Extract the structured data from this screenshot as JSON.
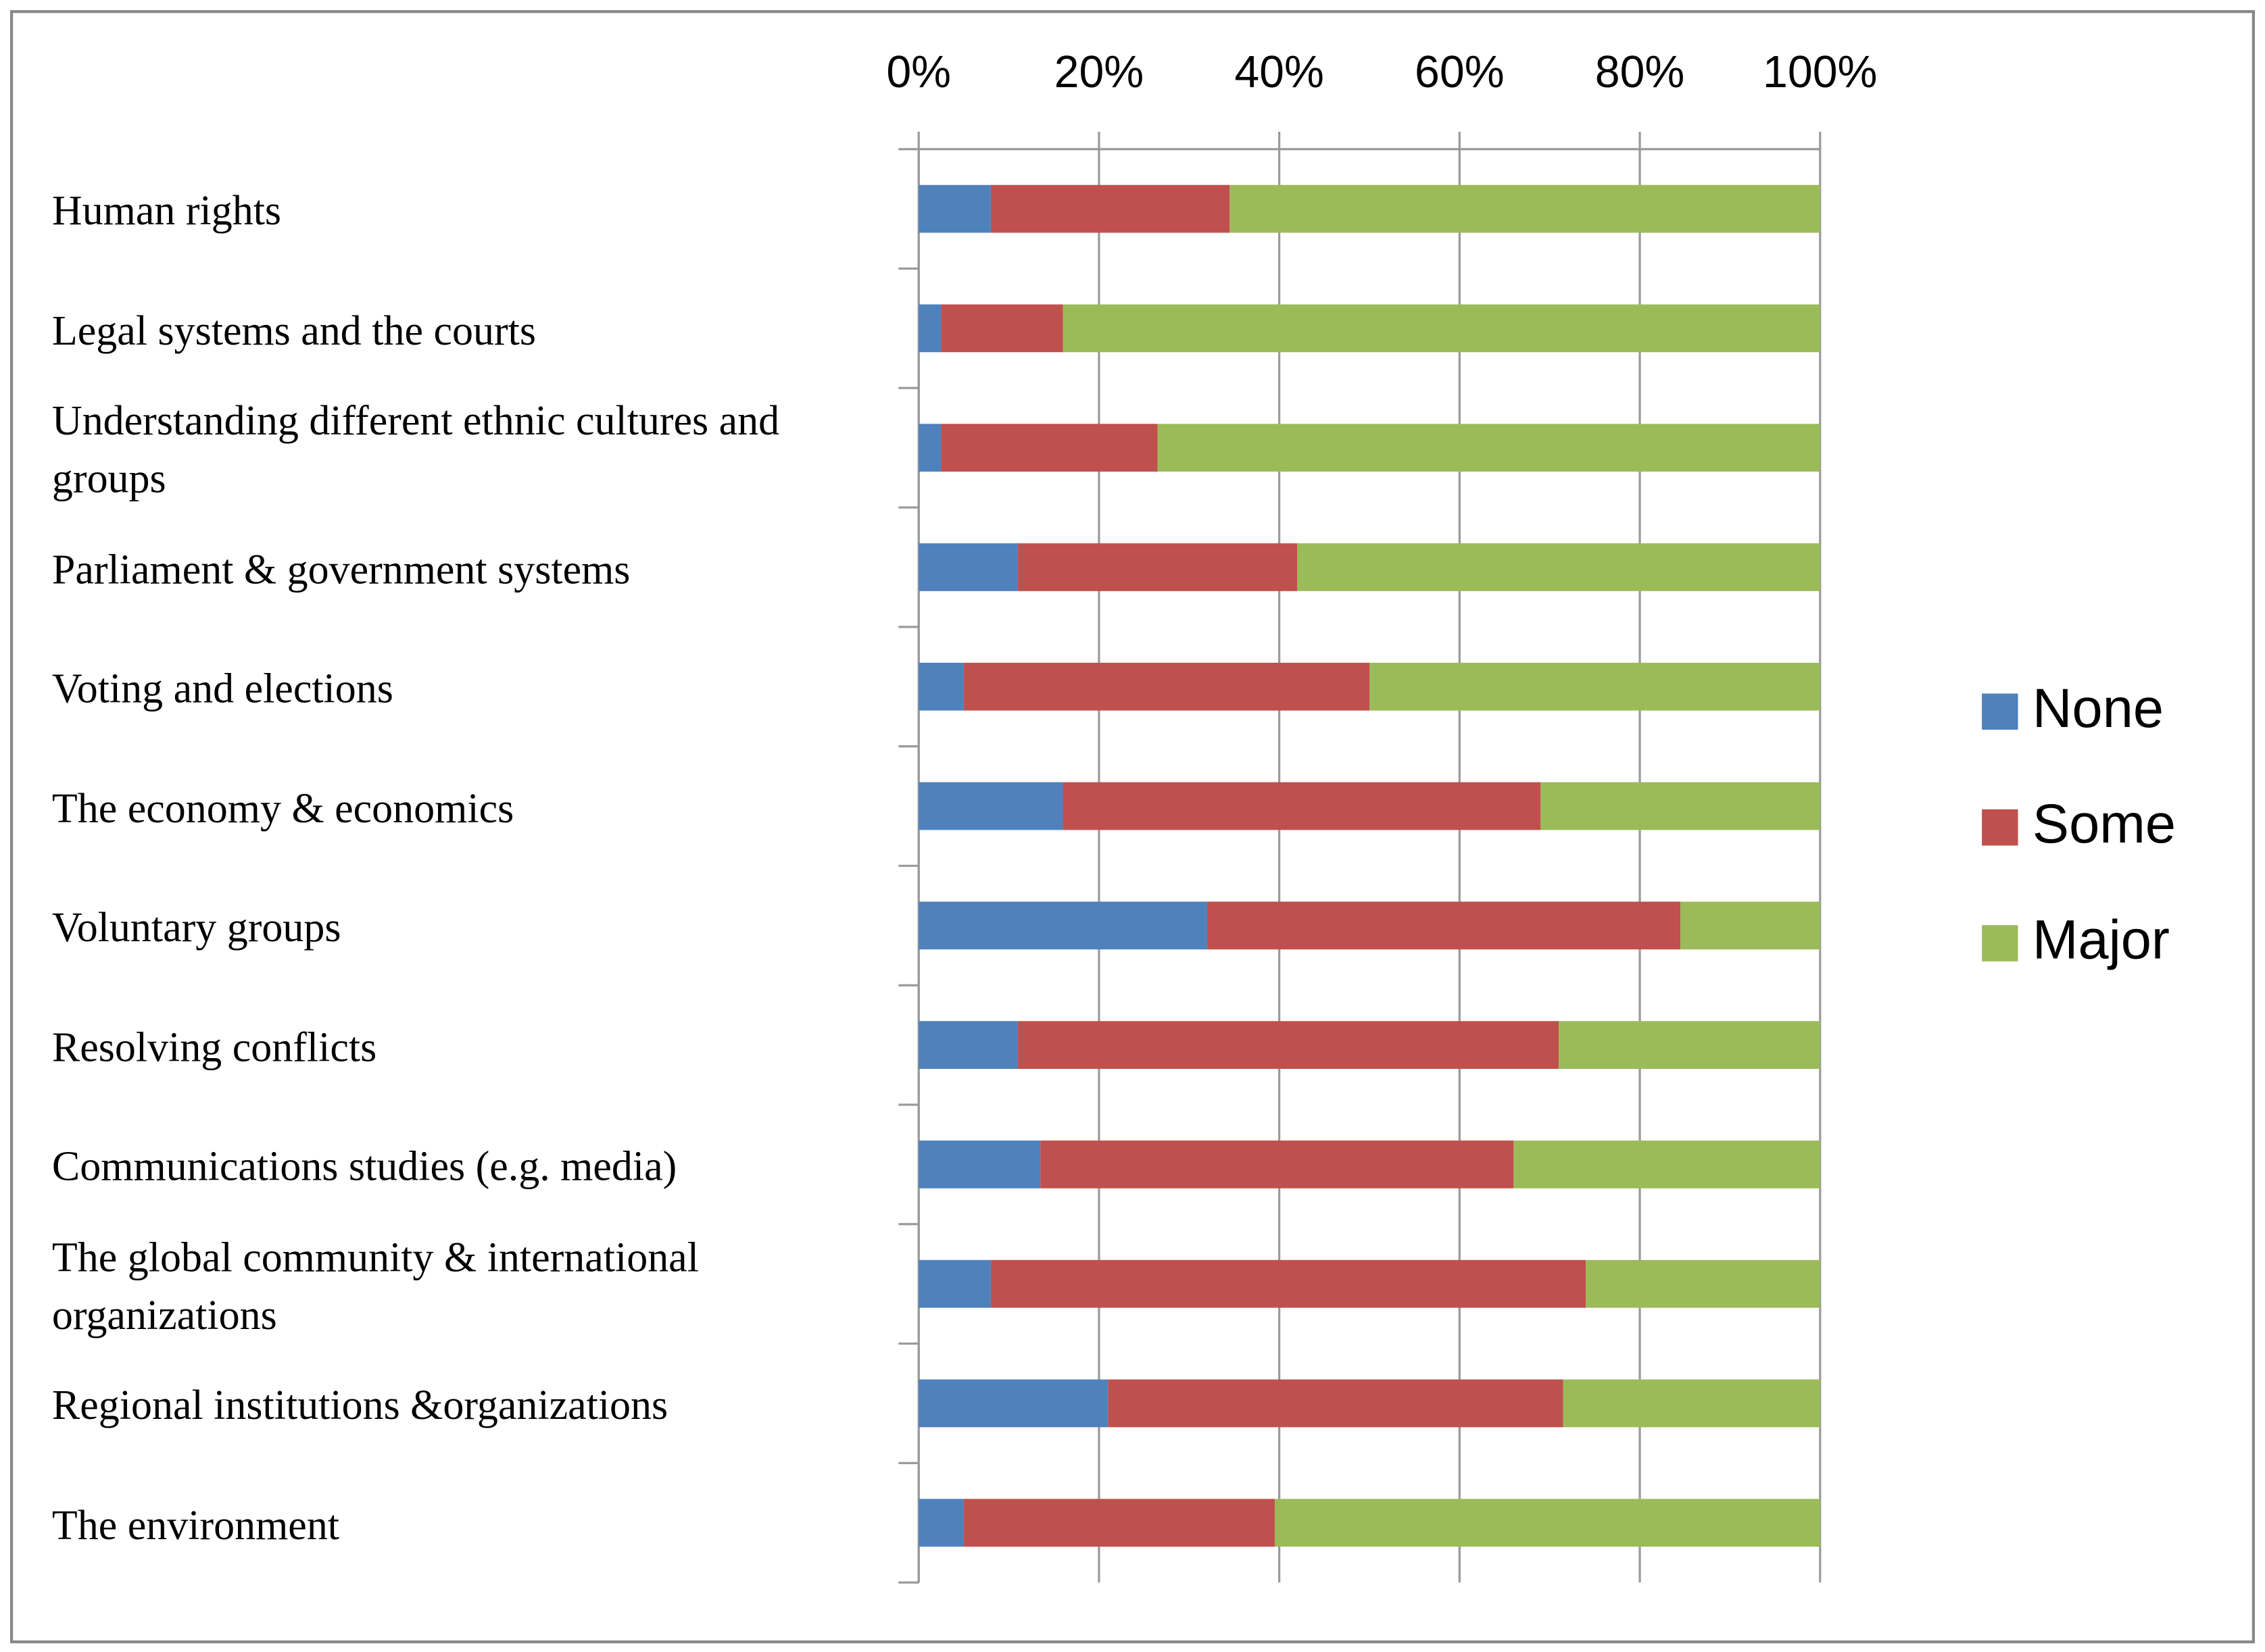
{
  "chart_data": {
    "type": "stacked-bar-horizontal",
    "categories": [
      "Human rights",
      "Legal systems and the courts",
      "Understanding different ethnic cultures and groups",
      "Parliament & government systems",
      "Voting and elections",
      "The economy & economics",
      "Voluntary groups",
      "Resolving conflicts",
      "Communications studies (e.g. media)",
      "The global community & international organizations",
      "Regional institutions &organizations",
      "The environment"
    ],
    "series": [
      {
        "name": "None",
        "color": "#4f81bd",
        "values": [
          8,
          2.5,
          2.5,
          11,
          5,
          16,
          32,
          11,
          13.5,
          8,
          21,
          5
        ]
      },
      {
        "name": "Some",
        "color": "#c0504d",
        "values": [
          26.5,
          13.5,
          24,
          31,
          45,
          53,
          52.5,
          60,
          52.5,
          66,
          50.5,
          34.5
        ]
      },
      {
        "name": "Major",
        "color": "#9bbb59",
        "values": [
          65.5,
          84,
          73.5,
          58,
          50,
          31,
          15.5,
          29,
          34,
          26,
          28.5,
          60.5
        ]
      }
    ],
    "xlim": [
      0,
      100
    ],
    "xticks": [
      {
        "value": 0,
        "label": "0%"
      },
      {
        "value": 20,
        "label": "20%"
      },
      {
        "value": 40,
        "label": "40%"
      },
      {
        "value": 60,
        "label": "60%"
      },
      {
        "value": 80,
        "label": "80%"
      },
      {
        "value": 100,
        "label": "100%"
      }
    ],
    "grid": true,
    "legend": "right"
  }
}
